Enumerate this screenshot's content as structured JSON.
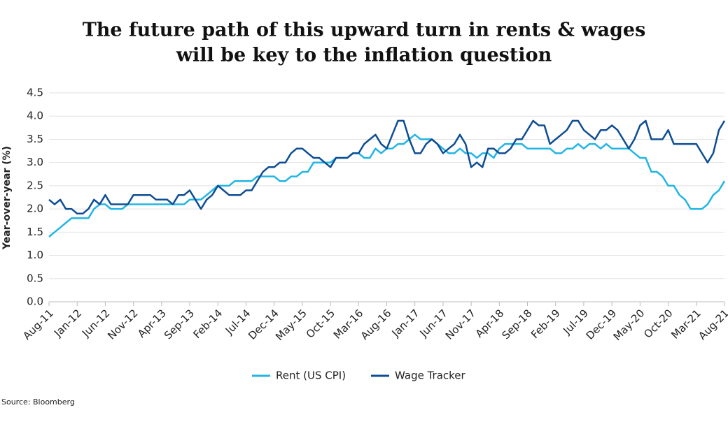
{
  "chart_data": {
    "type": "line",
    "title": [
      "The future path of this upward turn in rents & wages",
      "will be key to the inflation question"
    ],
    "y_label": "Year-over-year (%)",
    "source": "Source: Bloomberg",
    "ylim": [
      0,
      4.5
    ],
    "yticks": [
      {
        "value": 0,
        "label": "0.0"
      },
      0.5,
      {
        "value": 1,
        "label": "1.0"
      },
      1.5,
      {
        "value": 2,
        "label": "2.0"
      },
      2.5,
      {
        "value": 3,
        "label": "3.0"
      },
      3.5,
      {
        "value": 4,
        "label": "4.0"
      },
      4.5
    ],
    "grid": true,
    "legend": "bottom",
    "categories": [
      "Aug-11",
      null,
      null,
      null,
      null,
      "Jan-12",
      null,
      null,
      null,
      null,
      "Jun-12",
      null,
      null,
      null,
      null,
      "Nov-12",
      null,
      null,
      null,
      null,
      "Apr-13",
      null,
      null,
      null,
      null,
      "Sep-13",
      null,
      null,
      null,
      null,
      "Feb-14",
      null,
      null,
      null,
      null,
      "Jul-14",
      null,
      null,
      null,
      null,
      "Dec-14",
      null,
      null,
      null,
      null,
      "May-15",
      null,
      null,
      null,
      null,
      "Oct-15",
      null,
      null,
      null,
      null,
      "Mar-16",
      null,
      null,
      null,
      null,
      "Aug-16",
      null,
      null,
      null,
      null,
      "Jan-17",
      null,
      null,
      null,
      null,
      "Jun-17",
      null,
      null,
      null,
      null,
      "Nov-17",
      null,
      null,
      null,
      null,
      "Apr-18",
      null,
      null,
      null,
      null,
      "Sep-18",
      null,
      null,
      null,
      null,
      "Feb-19",
      null,
      null,
      null,
      null,
      "Jul-19",
      null,
      null,
      null,
      null,
      "Dec-19",
      null,
      null,
      null,
      null,
      "May-20",
      null,
      null,
      null,
      null,
      "Oct-20",
      null,
      null,
      null,
      null,
      "Mar-21",
      null,
      null,
      null,
      null,
      "Aug-21"
    ],
    "series": [
      {
        "name": "Rent (US CPI)",
        "color": "#22b5e4",
        "values": [
          1.4,
          1.5,
          1.6,
          1.7,
          1.8,
          1.8,
          1.8,
          1.8,
          2.0,
          2.1,
          2.1,
          2.0,
          2.0,
          2.0,
          2.1,
          2.1,
          2.1,
          2.1,
          2.1,
          2.1,
          2.1,
          2.1,
          2.1,
          2.1,
          2.1,
          2.2,
          2.2,
          2.2,
          2.3,
          2.4,
          2.5,
          2.5,
          2.5,
          2.6,
          2.6,
          2.6,
          2.6,
          2.7,
          2.7,
          2.7,
          2.7,
          2.6,
          2.6,
          2.7,
          2.7,
          2.8,
          2.8,
          3.0,
          3.0,
          3.0,
          3.0,
          3.1,
          3.1,
          3.1,
          3.2,
          3.2,
          3.1,
          3.1,
          3.3,
          3.2,
          3.3,
          3.3,
          3.4,
          3.4,
          3.5,
          3.6,
          3.5,
          3.5,
          3.5,
          3.4,
          3.3,
          3.2,
          3.2,
          3.3,
          3.2,
          3.2,
          3.1,
          3.2,
          3.2,
          3.1,
          3.3,
          3.4,
          3.4,
          3.4,
          3.4,
          3.3,
          3.3,
          3.3,
          3.3,
          3.3,
          3.2,
          3.2,
          3.3,
          3.3,
          3.4,
          3.3,
          3.4,
          3.4,
          3.3,
          3.4,
          3.3,
          3.3,
          3.3,
          3.3,
          3.2,
          3.1,
          3.1,
          2.8,
          2.8,
          2.7,
          2.5,
          2.5,
          2.3,
          2.2,
          2.0,
          2.0,
          2.0,
          2.1,
          2.3,
          2.4,
          2.6
        ]
      },
      {
        "name": "Wage Tracker",
        "color": "#0e4d92",
        "values": [
          2.2,
          2.1,
          2.2,
          2.0,
          2.0,
          1.9,
          1.9,
          2.0,
          2.2,
          2.1,
          2.3,
          2.1,
          2.1,
          2.1,
          2.1,
          2.3,
          2.3,
          2.3,
          2.3,
          2.2,
          2.2,
          2.2,
          2.1,
          2.3,
          2.3,
          2.4,
          2.2,
          2.0,
          2.2,
          2.3,
          2.5,
          2.4,
          2.3,
          2.3,
          2.3,
          2.4,
          2.4,
          2.6,
          2.8,
          2.9,
          2.9,
          3.0,
          3.0,
          3.2,
          3.3,
          3.3,
          3.2,
          3.1,
          3.1,
          3.0,
          2.9,
          3.1,
          3.1,
          3.1,
          3.2,
          3.2,
          3.4,
          3.5,
          3.6,
          3.4,
          3.3,
          3.6,
          3.9,
          3.9,
          3.5,
          3.2,
          3.2,
          3.4,
          3.5,
          3.4,
          3.2,
          3.3,
          3.4,
          3.6,
          3.4,
          2.9,
          3.0,
          2.9,
          3.3,
          3.3,
          3.2,
          3.2,
          3.3,
          3.5,
          3.5,
          3.7,
          3.9,
          3.8,
          3.8,
          3.4,
          3.5,
          3.6,
          3.7,
          3.9,
          3.9,
          3.7,
          3.6,
          3.5,
          3.7,
          3.7,
          3.8,
          3.7,
          3.5,
          3.3,
          3.5,
          3.8,
          3.9,
          3.5,
          3.5,
          3.5,
          3.7,
          3.4,
          3.4,
          3.4,
          3.4,
          3.4,
          3.2,
          3.0,
          3.2,
          3.7,
          3.9
        ]
      }
    ]
  }
}
